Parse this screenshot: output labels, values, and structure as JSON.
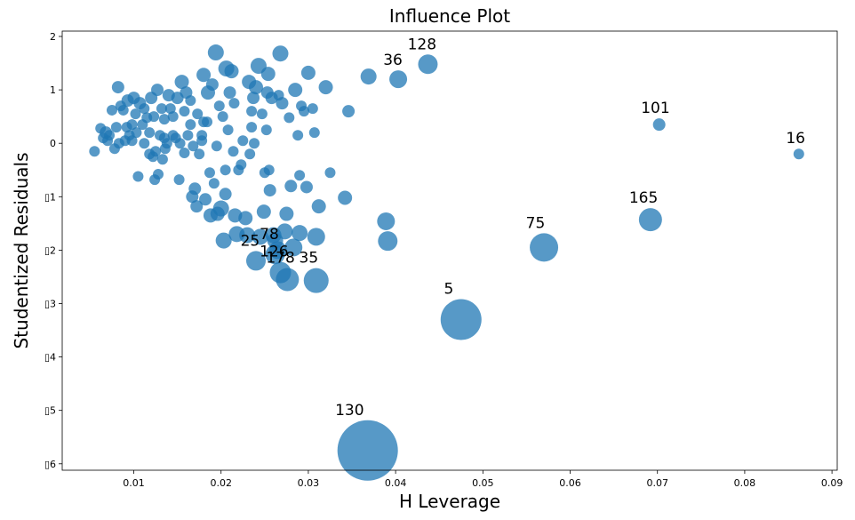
{
  "chart_data": {
    "type": "scatter",
    "title": "Influence Plot",
    "xlabel": "H Leverage",
    "ylabel": "Studentized Residuals",
    "xlim": [
      0.0018,
      0.0906
    ],
    "ylim": [
      -6.12,
      2.1
    ],
    "xticks": [
      {
        "v": 0.01,
        "label": "0.01"
      },
      {
        "v": 0.02,
        "label": "0.02"
      },
      {
        "v": 0.03,
        "label": "0.03"
      },
      {
        "v": 0.04,
        "label": "0.04"
      },
      {
        "v": 0.05,
        "label": "0.05"
      },
      {
        "v": 0.06,
        "label": "0.06"
      },
      {
        "v": 0.07,
        "label": "0.07"
      },
      {
        "v": 0.08,
        "label": "0.08"
      },
      {
        "v": 0.09,
        "label": "0.09"
      }
    ],
    "yticks": [
      {
        "v": 2,
        "label": "2"
      },
      {
        "v": 1,
        "label": "1"
      },
      {
        "v": 0,
        "label": "0"
      },
      {
        "v": -1,
        "label": "▯1"
      },
      {
        "v": -2,
        "label": "▯2"
      },
      {
        "v": -3,
        "label": "▯3"
      },
      {
        "v": -4,
        "label": "▯4"
      },
      {
        "v": -5,
        "label": "▯5"
      },
      {
        "v": -6,
        "label": "▯6"
      }
    ],
    "size_scale": "point size proportional to Cook's distance",
    "labeled_points": [
      {
        "id": "130",
        "h": 0.0368,
        "r": -5.75,
        "s": 34
      },
      {
        "id": "5",
        "h": 0.0475,
        "r": -3.3,
        "s": 23
      },
      {
        "id": "75",
        "h": 0.057,
        "r": -1.95,
        "s": 16
      },
      {
        "id": "165",
        "h": 0.0692,
        "r": -1.43,
        "s": 13
      },
      {
        "id": "128",
        "h": 0.0437,
        "r": 1.48,
        "s": 11
      },
      {
        "id": "36",
        "h": 0.0403,
        "r": 1.2,
        "s": 10
      },
      {
        "id": "101",
        "h": 0.0702,
        "r": 0.35,
        "s": 7
      },
      {
        "id": "16",
        "h": 0.0862,
        "r": -0.2,
        "s": 6
      },
      {
        "id": "25",
        "h": 0.024,
        "r": -2.2,
        "s": 11
      },
      {
        "id": "78",
        "h": 0.0262,
        "r": -2.08,
        "s": 11
      },
      {
        "id": "126",
        "h": 0.0268,
        "r": -2.42,
        "s": 12
      },
      {
        "id": "178",
        "h": 0.0276,
        "r": -2.55,
        "s": 13
      },
      {
        "id": "35",
        "h": 0.0309,
        "r": -2.57,
        "s": 14
      }
    ],
    "points": [
      {
        "h": 0.0055,
        "r": -0.15,
        "s": 6
      },
      {
        "h": 0.0062,
        "r": 0.28,
        "s": 6
      },
      {
        "h": 0.0065,
        "r": 0.1,
        "s": 6
      },
      {
        "h": 0.0068,
        "r": 0.2,
        "s": 7
      },
      {
        "h": 0.007,
        "r": 0.05,
        "s": 6
      },
      {
        "h": 0.0072,
        "r": 0.15,
        "s": 6
      },
      {
        "h": 0.0075,
        "r": 0.62,
        "s": 6
      },
      {
        "h": 0.0078,
        "r": -0.1,
        "s": 6
      },
      {
        "h": 0.008,
        "r": 0.3,
        "s": 6
      },
      {
        "h": 0.0082,
        "r": 1.05,
        "s": 7
      },
      {
        "h": 0.0083,
        "r": 0.0,
        "s": 6
      },
      {
        "h": 0.0085,
        "r": 0.7,
        "s": 6
      },
      {
        "h": 0.0088,
        "r": 0.62,
        "s": 6
      },
      {
        "h": 0.009,
        "r": 0.05,
        "s": 6
      },
      {
        "h": 0.0093,
        "r": 0.8,
        "s": 7
      },
      {
        "h": 0.0095,
        "r": 0.15,
        "s": 6
      },
      {
        "h": 0.0098,
        "r": 0.35,
        "s": 6
      },
      {
        "h": 0.01,
        "r": 0.85,
        "s": 7
      },
      {
        "h": 0.0102,
        "r": 0.55,
        "s": 6
      },
      {
        "h": 0.0103,
        "r": 0.2,
        "s": 6
      },
      {
        "h": 0.0105,
        "r": -0.62,
        "s": 6
      },
      {
        "h": 0.0107,
        "r": 0.75,
        "s": 7
      },
      {
        "h": 0.011,
        "r": 0.35,
        "s": 6
      },
      {
        "h": 0.0112,
        "r": 0.0,
        "s": 6
      },
      {
        "h": 0.0115,
        "r": 0.48,
        "s": 6
      },
      {
        "h": 0.0118,
        "r": 0.2,
        "s": 6
      },
      {
        "h": 0.012,
        "r": 0.85,
        "s": 7
      },
      {
        "h": 0.0122,
        "r": -0.25,
        "s": 6
      },
      {
        "h": 0.0123,
        "r": 0.5,
        "s": 6
      },
      {
        "h": 0.0124,
        "r": -0.68,
        "s": 6
      },
      {
        "h": 0.0125,
        "r": -0.15,
        "s": 6
      },
      {
        "h": 0.0127,
        "r": 1.0,
        "s": 7
      },
      {
        "h": 0.0128,
        "r": -0.58,
        "s": 6
      },
      {
        "h": 0.013,
        "r": 0.15,
        "s": 6
      },
      {
        "h": 0.0132,
        "r": 0.65,
        "s": 6
      },
      {
        "h": 0.0133,
        "r": -0.3,
        "s": 6
      },
      {
        "h": 0.0135,
        "r": 0.1,
        "s": 6
      },
      {
        "h": 0.0136,
        "r": -0.1,
        "s": 6
      },
      {
        "h": 0.0138,
        "r": 0.0,
        "s": 6
      },
      {
        "h": 0.014,
        "r": 0.9,
        "s": 7
      },
      {
        "h": 0.0142,
        "r": 0.65,
        "s": 6
      },
      {
        "h": 0.0145,
        "r": 0.5,
        "s": 6
      },
      {
        "h": 0.0148,
        "r": 0.1,
        "s": 6
      },
      {
        "h": 0.015,
        "r": 0.85,
        "s": 7
      },
      {
        "h": 0.0152,
        "r": -0.68,
        "s": 6
      },
      {
        "h": 0.0153,
        "r": 0.0,
        "s": 6
      },
      {
        "h": 0.0155,
        "r": 1.15,
        "s": 8
      },
      {
        "h": 0.0158,
        "r": 0.6,
        "s": 6
      },
      {
        "h": 0.016,
        "r": 0.95,
        "s": 7
      },
      {
        "h": 0.0162,
        "r": 0.15,
        "s": 6
      },
      {
        "h": 0.0165,
        "r": 0.35,
        "s": 6
      },
      {
        "h": 0.0167,
        "r": -1.0,
        "s": 7
      },
      {
        "h": 0.0168,
        "r": -0.05,
        "s": 6
      },
      {
        "h": 0.017,
        "r": -0.85,
        "s": 7
      },
      {
        "h": 0.0172,
        "r": -1.18,
        "s": 7
      },
      {
        "h": 0.0173,
        "r": 0.55,
        "s": 6
      },
      {
        "h": 0.0175,
        "r": -0.2,
        "s": 6
      },
      {
        "h": 0.0178,
        "r": 0.05,
        "s": 6
      },
      {
        "h": 0.018,
        "r": 1.28,
        "s": 8
      },
      {
        "h": 0.0182,
        "r": -1.05,
        "s": 7
      },
      {
        "h": 0.0184,
        "r": 0.4,
        "s": 6
      },
      {
        "h": 0.0185,
        "r": 0.95,
        "s": 8
      },
      {
        "h": 0.0187,
        "r": -0.55,
        "s": 6
      },
      {
        "h": 0.0188,
        "r": -1.35,
        "s": 8
      },
      {
        "h": 0.019,
        "r": 1.1,
        "s": 7
      },
      {
        "h": 0.0192,
        "r": -0.75,
        "s": 6
      },
      {
        "h": 0.0194,
        "r": 1.7,
        "s": 9
      },
      {
        "h": 0.0196,
        "r": -1.32,
        "s": 8
      },
      {
        "h": 0.0198,
        "r": 0.7,
        "s": 6
      },
      {
        "h": 0.02,
        "r": -1.22,
        "s": 9
      },
      {
        "h": 0.0202,
        "r": 0.5,
        "s": 6
      },
      {
        "h": 0.0203,
        "r": -1.82,
        "s": 9
      },
      {
        "h": 0.0205,
        "r": -0.95,
        "s": 7
      },
      {
        "h": 0.0206,
        "r": 1.4,
        "s": 9
      },
      {
        "h": 0.0208,
        "r": 0.25,
        "s": 6
      },
      {
        "h": 0.021,
        "r": 0.95,
        "s": 7
      },
      {
        "h": 0.0212,
        "r": 1.35,
        "s": 8
      },
      {
        "h": 0.0214,
        "r": -0.15,
        "s": 6
      },
      {
        "h": 0.0216,
        "r": -1.35,
        "s": 8
      },
      {
        "h": 0.0218,
        "r": -1.7,
        "s": 9
      },
      {
        "h": 0.022,
        "r": -0.5,
        "s": 6
      },
      {
        "h": 0.0223,
        "r": -0.4,
        "s": 6
      },
      {
        "h": 0.0225,
        "r": 0.05,
        "s": 6
      },
      {
        "h": 0.0228,
        "r": -1.4,
        "s": 8
      },
      {
        "h": 0.023,
        "r": -1.72,
        "s": 9
      },
      {
        "h": 0.0232,
        "r": 1.15,
        "s": 8
      },
      {
        "h": 0.0233,
        "r": -0.2,
        "s": 6
      },
      {
        "h": 0.0235,
        "r": 0.3,
        "s": 6
      },
      {
        "h": 0.0237,
        "r": 0.85,
        "s": 7
      },
      {
        "h": 0.0238,
        "r": 0.0,
        "s": 6
      },
      {
        "h": 0.024,
        "r": 1.05,
        "s": 8
      },
      {
        "h": 0.0243,
        "r": 1.45,
        "s": 9
      },
      {
        "h": 0.0245,
        "r": -1.75,
        "s": 9
      },
      {
        "h": 0.0247,
        "r": 0.55,
        "s": 6
      },
      {
        "h": 0.0249,
        "r": -1.28,
        "s": 8
      },
      {
        "h": 0.025,
        "r": -0.55,
        "s": 6
      },
      {
        "h": 0.0252,
        "r": 0.25,
        "s": 6
      },
      {
        "h": 0.0254,
        "r": 1.3,
        "s": 8
      },
      {
        "h": 0.0256,
        "r": -0.88,
        "s": 7
      },
      {
        "h": 0.0258,
        "r": 0.85,
        "s": 7
      },
      {
        "h": 0.026,
        "r": -1.72,
        "s": 9
      },
      {
        "h": 0.0262,
        "r": -1.82,
        "s": 9
      },
      {
        "h": 0.0265,
        "r": -2.0,
        "s": 10
      },
      {
        "h": 0.0268,
        "r": 1.68,
        "s": 9
      },
      {
        "h": 0.027,
        "r": 0.75,
        "s": 7
      },
      {
        "h": 0.0273,
        "r": -1.65,
        "s": 9
      },
      {
        "h": 0.0275,
        "r": -1.32,
        "s": 8
      },
      {
        "h": 0.0278,
        "r": 0.48,
        "s": 6
      },
      {
        "h": 0.028,
        "r": -0.8,
        "s": 7
      },
      {
        "h": 0.0283,
        "r": -1.95,
        "s": 10
      },
      {
        "h": 0.0285,
        "r": 1.0,
        "s": 8
      },
      {
        "h": 0.0288,
        "r": 0.15,
        "s": 6
      },
      {
        "h": 0.029,
        "r": -1.68,
        "s": 9
      },
      {
        "h": 0.0292,
        "r": 0.7,
        "s": 6
      },
      {
        "h": 0.0295,
        "r": 0.6,
        "s": 6
      },
      {
        "h": 0.0298,
        "r": -0.82,
        "s": 7
      },
      {
        "h": 0.03,
        "r": 1.32,
        "s": 8
      },
      {
        "h": 0.0305,
        "r": 0.65,
        "s": 6
      },
      {
        "h": 0.0307,
        "r": 0.2,
        "s": 6
      },
      {
        "h": 0.0309,
        "r": -1.75,
        "s": 10
      },
      {
        "h": 0.0312,
        "r": -1.18,
        "s": 8
      },
      {
        "h": 0.032,
        "r": 1.05,
        "s": 8
      },
      {
        "h": 0.0325,
        "r": -0.55,
        "s": 6
      },
      {
        "h": 0.0342,
        "r": -1.02,
        "s": 8
      },
      {
        "h": 0.0346,
        "r": 0.6,
        "s": 7
      },
      {
        "h": 0.0369,
        "r": 1.25,
        "s": 9
      },
      {
        "h": 0.0389,
        "r": -1.46,
        "s": 10
      },
      {
        "h": 0.0391,
        "r": -1.83,
        "s": 11
      },
      {
        "h": 0.029,
        "r": -0.6,
        "s": 6
      },
      {
        "h": 0.0255,
        "r": -0.5,
        "s": 6
      },
      {
        "h": 0.018,
        "r": 0.4,
        "s": 6
      },
      {
        "h": 0.0158,
        "r": -0.18,
        "s": 6
      },
      {
        "h": 0.0145,
        "r": 0.15,
        "s": 6
      },
      {
        "h": 0.0112,
        "r": 0.65,
        "s": 6
      },
      {
        "h": 0.0098,
        "r": 0.05,
        "s": 6
      },
      {
        "h": 0.0135,
        "r": 0.45,
        "s": 6
      },
      {
        "h": 0.0195,
        "r": -0.05,
        "s": 6
      },
      {
        "h": 0.0215,
        "r": 0.75,
        "s": 6
      },
      {
        "h": 0.0235,
        "r": 0.6,
        "s": 6
      },
      {
        "h": 0.0253,
        "r": 0.95,
        "s": 7
      },
      {
        "h": 0.0266,
        "r": 0.9,
        "s": 6
      },
      {
        "h": 0.0205,
        "r": -0.5,
        "s": 6
      },
      {
        "h": 0.0178,
        "r": 0.15,
        "s": 6
      },
      {
        "h": 0.0165,
        "r": 0.8,
        "s": 6
      },
      {
        "h": 0.0118,
        "r": -0.2,
        "s": 6
      },
      {
        "h": 0.0092,
        "r": 0.3,
        "s": 6
      }
    ]
  }
}
